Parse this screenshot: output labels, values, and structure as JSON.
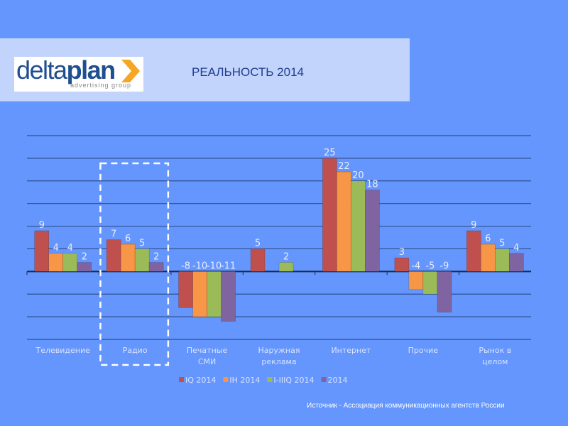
{
  "header": {
    "logo_text_light": "delta",
    "logo_text_bold": "plan",
    "logo_sub": "advertising group",
    "title": "РЕАЛЬНОСТЬ 2014"
  },
  "chart_data": {
    "type": "bar",
    "title": "РЕАЛЬНОСТЬ 2014",
    "categories": [
      "Телевидение",
      "Радио",
      "Печатные СМИ",
      "Наружная реклама",
      "Интернет",
      "Прочие",
      "Рынок в целом"
    ],
    "series": [
      {
        "name": "IQ 2014",
        "color": "#c0504d",
        "values": [
          9,
          7,
          -8,
          5,
          25,
          3,
          9
        ]
      },
      {
        "name": "IH 2014",
        "color": "#f79646",
        "values": [
          4,
          6,
          -10,
          null,
          22,
          -4,
          6
        ]
      },
      {
        "name": "I-IIIQ 2014",
        "color": "#9bbb59",
        "values": [
          4,
          5,
          -10,
          2,
          20,
          -5,
          5
        ]
      },
      {
        "name": "2014",
        "color": "#8064a2",
        "values": [
          2,
          2,
          -11,
          null,
          18,
          -9,
          4
        ]
      }
    ],
    "ylim": [
      -15,
      30
    ],
    "grid": true,
    "legend": "bottom",
    "highlighted_category": "Радио"
  },
  "footer": {
    "source": "Источник - Ассоциация коммуникационных агентств России"
  }
}
